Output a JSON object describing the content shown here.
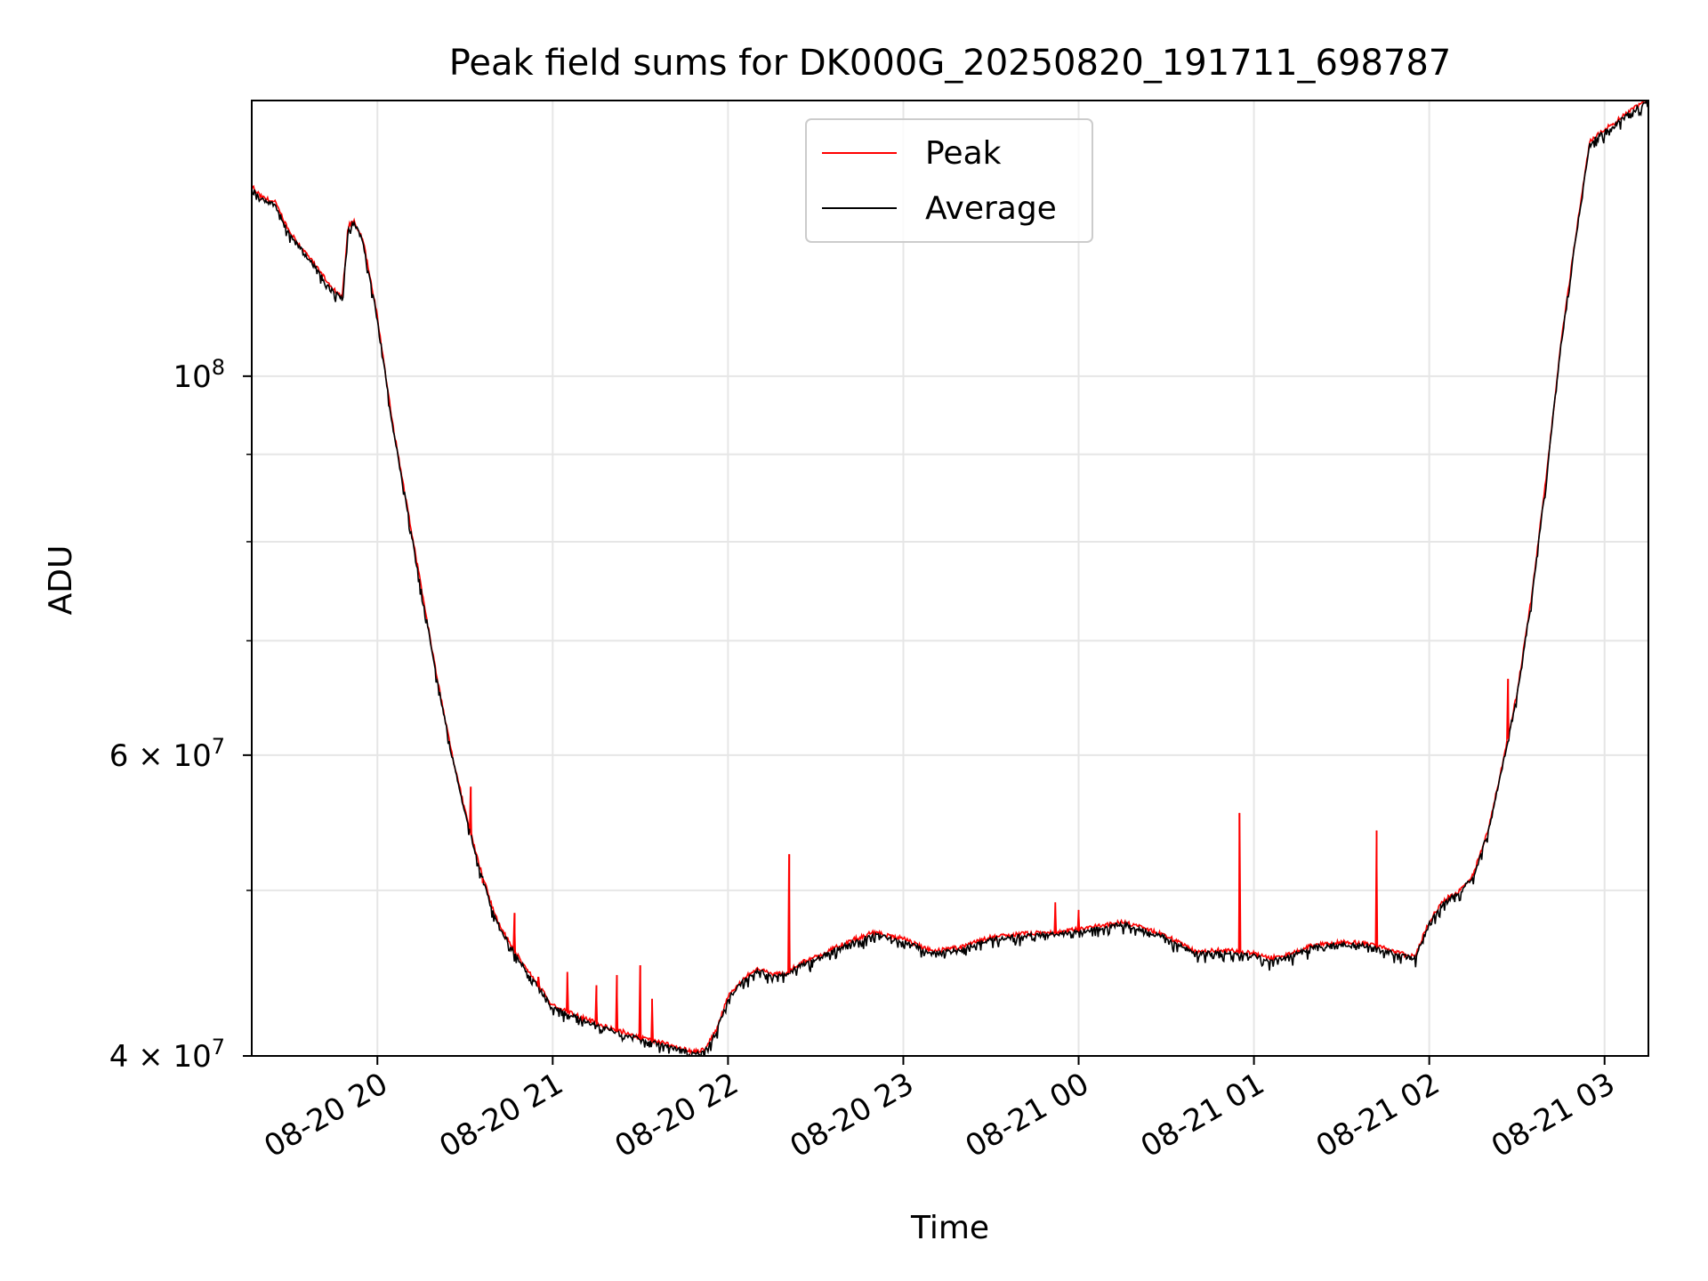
{
  "chart_data": {
    "type": "line",
    "title": "Peak field sums for DK000G_20250820_191711_698787",
    "xlabel": "Time",
    "ylabel": "ADU",
    "yscale": "log",
    "ylim": [
      40000000,
      145000000
    ],
    "xlim": [
      "2025-08-20 19:17",
      "2025-08-21 03:15"
    ],
    "grid": true,
    "legend": {
      "placement": "upper center",
      "entries": [
        "Peak",
        "Average"
      ]
    },
    "x_ticks": [
      {
        "label": "08-20 20",
        "value": "2025-08-20 20:00"
      },
      {
        "label": "08-20 21",
        "value": "2025-08-20 21:00"
      },
      {
        "label": "08-20 22",
        "value": "2025-08-20 22:00"
      },
      {
        "label": "08-20 23",
        "value": "2025-08-20 23:00"
      },
      {
        "label": "08-21 00",
        "value": "2025-08-21 00:00"
      },
      {
        "label": "08-21 01",
        "value": "2025-08-21 01:00"
      },
      {
        "label": "08-21 02",
        "value": "2025-08-21 02:00"
      },
      {
        "label": "08-21 03",
        "value": "2025-08-21 03:00"
      }
    ],
    "y_ticks_major": [
      {
        "value": 40000000,
        "base": "4 × 10",
        "exp": "7"
      },
      {
        "value": 60000000,
        "base": "6 × 10",
        "exp": "7"
      },
      {
        "value": 100000000,
        "base": "10",
        "exp": "8"
      }
    ],
    "y_ticks_minor": [
      50000000,
      70000000,
      80000000,
      90000000
    ],
    "series": [
      {
        "name": "Peak",
        "color": "#ff0000"
      },
      {
        "name": "Average",
        "color": "#000000"
      }
    ],
    "average_curve": {
      "x": [
        "2025-08-20 19:17",
        "2025-08-20 19:20",
        "2025-08-20 19:25",
        "2025-08-20 19:30",
        "2025-08-20 19:35",
        "2025-08-20 19:40",
        "2025-08-20 19:45",
        "2025-08-20 19:48",
        "2025-08-20 19:50",
        "2025-08-20 19:52",
        "2025-08-20 19:55",
        "2025-08-20 20:00",
        "2025-08-20 20:05",
        "2025-08-20 20:10",
        "2025-08-20 20:15",
        "2025-08-20 20:20",
        "2025-08-20 20:25",
        "2025-08-20 20:30",
        "2025-08-20 20:35",
        "2025-08-20 20:40",
        "2025-08-20 20:45",
        "2025-08-20 20:50",
        "2025-08-20 21:00",
        "2025-08-20 21:10",
        "2025-08-20 21:20",
        "2025-08-20 21:30",
        "2025-08-20 21:40",
        "2025-08-20 21:48",
        "2025-08-20 21:52",
        "2025-08-20 21:56",
        "2025-08-20 22:00",
        "2025-08-20 22:05",
        "2025-08-20 22:10",
        "2025-08-20 22:15",
        "2025-08-20 22:20",
        "2025-08-20 22:25",
        "2025-08-20 22:30",
        "2025-08-20 22:35",
        "2025-08-20 22:40",
        "2025-08-20 22:45",
        "2025-08-20 22:50",
        "2025-08-20 23:00",
        "2025-08-20 23:10",
        "2025-08-20 23:20",
        "2025-08-20 23:30",
        "2025-08-20 23:40",
        "2025-08-20 23:50",
        "2025-08-21 00:00",
        "2025-08-21 00:10",
        "2025-08-21 00:15",
        "2025-08-21 00:20",
        "2025-08-21 00:30",
        "2025-08-21 00:40",
        "2025-08-21 00:50",
        "2025-08-21 01:00",
        "2025-08-21 01:05",
        "2025-08-21 01:10",
        "2025-08-21 01:20",
        "2025-08-21 01:30",
        "2025-08-21 01:40",
        "2025-08-21 01:50",
        "2025-08-21 01:55",
        "2025-08-21 02:00",
        "2025-08-21 02:05",
        "2025-08-21 02:10",
        "2025-08-21 02:15",
        "2025-08-21 02:20",
        "2025-08-21 02:25",
        "2025-08-21 02:30",
        "2025-08-21 02:35",
        "2025-08-21 02:40",
        "2025-08-21 02:45",
        "2025-08-21 02:50",
        "2025-08-21 02:55",
        "2025-08-21 03:00",
        "2025-08-21 03:05",
        "2025-08-21 03:10",
        "2025-08-21 03:15"
      ],
      "y": [
        129000000,
        127000000,
        126000000,
        121000000,
        118000000,
        115000000,
        112000000,
        111000000,
        122000000,
        123000000,
        120000000,
        108000000,
        94000000,
        84000000,
        75000000,
        67000000,
        60500000,
        55500000,
        51500000,
        48300000,
        46500000,
        45100000,
        42700000,
        42000000,
        41400000,
        40900000,
        40500000,
        40100000,
        40200000,
        41300000,
        43200000,
        44200000,
        44900000,
        44500000,
        44600000,
        45200000,
        45600000,
        46000000,
        46400000,
        46800000,
        47100000,
        46700000,
        45900000,
        46200000,
        46800000,
        47000000,
        47100000,
        47300000,
        47600000,
        47800000,
        47500000,
        46900000,
        45900000,
        46000000,
        45800000,
        45500000,
        45600000,
        46300000,
        46500000,
        46400000,
        45800000,
        45600000,
        47800000,
        49200000,
        49800000,
        50900000,
        54000000,
        59000000,
        65000000,
        74000000,
        87000000,
        104000000,
        120000000,
        137000000,
        139000000,
        141000000,
        143000000,
        145000000
      ]
    },
    "peak_spikes": [
      {
        "x": "2025-08-20 20:32",
        "y": 57500000
      },
      {
        "x": "2025-08-20 20:36",
        "y": 50500000
      },
      {
        "x": "2025-08-20 20:47",
        "y": 48500000
      },
      {
        "x": "2025-08-20 20:55",
        "y": 44500000
      },
      {
        "x": "2025-08-20 21:05",
        "y": 44800000
      },
      {
        "x": "2025-08-20 21:15",
        "y": 44000000
      },
      {
        "x": "2025-08-20 21:22",
        "y": 44600000
      },
      {
        "x": "2025-08-20 21:30",
        "y": 45200000
      },
      {
        "x": "2025-08-20 21:34",
        "y": 43200000
      },
      {
        "x": "2025-08-20 22:21",
        "y": 52500000
      },
      {
        "x": "2025-08-20 23:52",
        "y": 49200000
      },
      {
        "x": "2025-08-21 00:00",
        "y": 48700000
      },
      {
        "x": "2025-08-21 00:55",
        "y": 55500000
      },
      {
        "x": "2025-08-21 01:42",
        "y": 54200000
      },
      {
        "x": "2025-08-21 02:27",
        "y": 66500000
      }
    ]
  }
}
